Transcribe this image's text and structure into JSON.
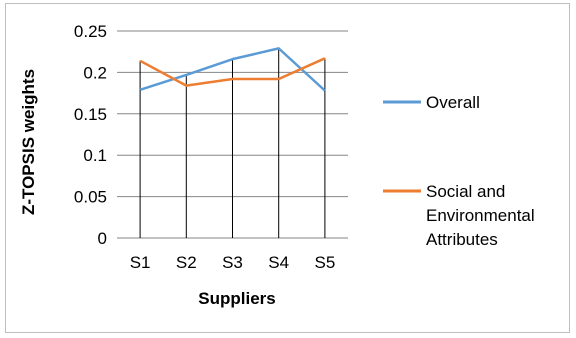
{
  "chart_data": {
    "type": "line",
    "categories": [
      "S1",
      "S2",
      "S3",
      "S4",
      "S5"
    ],
    "series": [
      {
        "name": "Overall",
        "values": [
          0.179,
          0.197,
          0.216,
          0.229,
          0.178
        ],
        "color": "#5b9bd5"
      },
      {
        "name": "Social and Environmental Attributes",
        "values": [
          0.214,
          0.184,
          0.192,
          0.192,
          0.217
        ],
        "color": "#ed7d31"
      }
    ],
    "title": "",
    "xlabel": "Suppliers",
    "ylabel": "Z-TOPSIS weights",
    "ylim": [
      0,
      0.25
    ],
    "yticks": [
      "0",
      "0.05",
      "0.1",
      "0.15",
      "0.2",
      "0.25"
    ],
    "grid": true,
    "drop_lines": true,
    "legend_position": "right"
  }
}
